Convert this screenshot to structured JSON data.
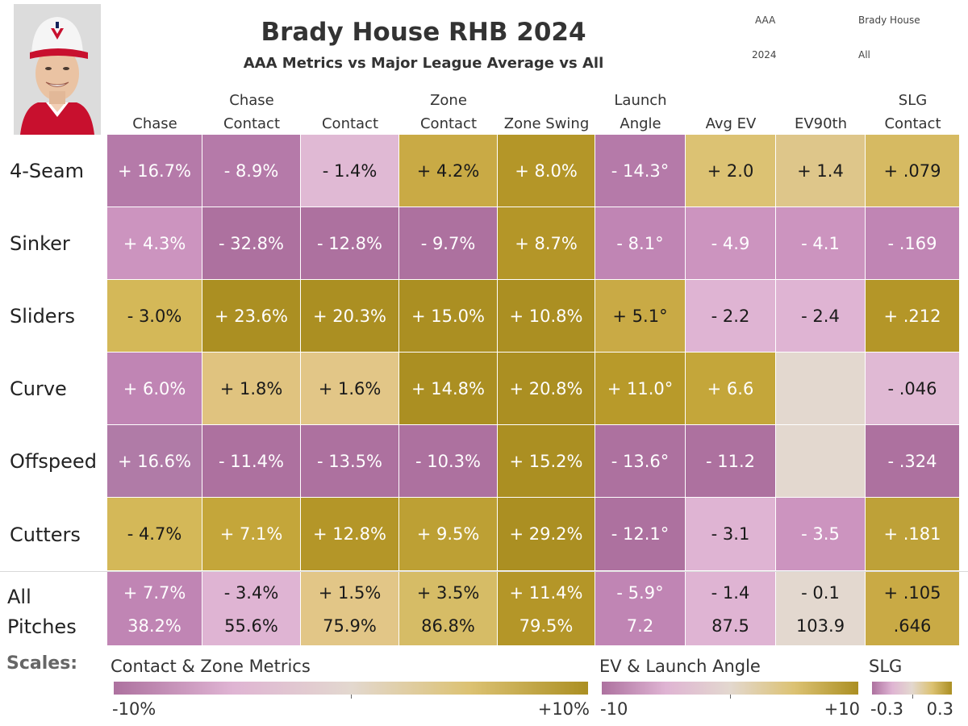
{
  "header": {
    "title": "Brady House RHB 2024",
    "subtitle": "AAA Metrics vs Major League Average vs All",
    "filters": [
      "AAA",
      "Brady House",
      "2024",
      "All"
    ]
  },
  "chart_data": {
    "type": "heatmap",
    "columns": [
      "Chase",
      "Chase Contact",
      "Contact",
      "Zone Contact",
      "Zone Swing",
      "Launch Angle",
      "Avg EV",
      "EV90th",
      "SLG Contact"
    ],
    "column_header_lines": [
      [
        "",
        "Chase"
      ],
      [
        "Chase",
        "Contact"
      ],
      [
        "",
        "Contact"
      ],
      [
        "Zone",
        "Contact"
      ],
      [
        "",
        "Zone Swing"
      ],
      [
        "Launch",
        "Angle"
      ],
      [
        "",
        "Avg EV"
      ],
      [
        "",
        "EV90th"
      ],
      [
        "SLG",
        "Contact"
      ]
    ],
    "rows": [
      {
        "label": "4-Seam",
        "values": [
          "+ 16.7%",
          "- 8.9%",
          "- 1.4%",
          "+ 4.2%",
          "+ 8.0%",
          "- 14.3°",
          "+ 2.0",
          "+ 1.4",
          "+ .079"
        ]
      },
      {
        "label": "Sinker",
        "values": [
          "+ 4.3%",
          "- 32.8%",
          "- 12.8%",
          "- 9.7%",
          "+ 8.7%",
          "- 8.1°",
          "- 4.9",
          "- 4.1",
          "- .169"
        ]
      },
      {
        "label": "Sliders",
        "values": [
          "- 3.0%",
          "+ 23.6%",
          "+ 20.3%",
          "+ 15.0%",
          "+ 10.8%",
          "+ 5.1°",
          "- 2.2",
          "- 2.4",
          "+ .212"
        ]
      },
      {
        "label": "Curve",
        "values": [
          "+ 6.0%",
          "+ 1.8%",
          "+ 1.6%",
          "+ 14.8%",
          "+ 20.8%",
          "+ 11.0°",
          "+ 6.6",
          "",
          "- .046"
        ]
      },
      {
        "label": "Offspeed",
        "values": [
          "+ 16.6%",
          "- 11.4%",
          "- 13.5%",
          "- 10.3%",
          "+ 15.2%",
          "- 13.6°",
          "- 11.2",
          "",
          "- .324"
        ]
      },
      {
        "label": "Cutters",
        "values": [
          "- 4.7%",
          "+ 7.1%",
          "+ 12.8%",
          "+ 9.5%",
          "+ 29.2%",
          "- 12.1°",
          "- 3.1",
          "- 3.5",
          "+ .181"
        ]
      }
    ],
    "all_pitches": {
      "label_lines": [
        "All",
        "Pitches"
      ],
      "diffs": [
        "+ 7.7%",
        "- 3.4%",
        "+ 1.5%",
        "+ 3.5%",
        "+ 11.4%",
        "- 5.9°",
        "- 1.4",
        "- 0.1",
        "+ .105"
      ],
      "values": [
        "38.2%",
        "55.6%",
        "75.9%",
        "86.8%",
        "79.5%",
        "7.2",
        "87.5",
        "103.9",
        ".646"
      ]
    },
    "row_colors": [
      [
        "#b57aa9",
        "#b57aa9",
        "#e0b9d4",
        "#c9aa45",
        "#b49628",
        "#b57aa9",
        "#dcc273",
        "#dec68a",
        "#d6ba62"
      ],
      [
        "#cc94bf",
        "#ad719f",
        "#ad719f",
        "#ad719f",
        "#b49628",
        "#c085b4",
        "#cc94bf",
        "#cc94bf",
        "#c085b4"
      ],
      [
        "#d4b858",
        "#ab8f22",
        "#ab8f22",
        "#ab8f22",
        "#ab8f22",
        "#c9aa45",
        "#dfb4d3",
        "#dfb4d3",
        "#b49628"
      ],
      [
        "#c085b4",
        "#e0c37f",
        "#e2c687",
        "#ab8f22",
        "#ab8f22",
        "#b89a2a",
        "#c4a63a",
        "#e3d8cf",
        "#e0b9d4"
      ],
      [
        "#b07ba7",
        "#ad719f",
        "#ad719f",
        "#ad719f",
        "#ab8f22",
        "#ad719f",
        "#ad719f",
        "#e3d8cf",
        "#ad719f"
      ],
      [
        "#d4b858",
        "#c4a63a",
        "#b49628",
        "#bda034",
        "#ab8f22",
        "#ad719f",
        "#dfb4d3",
        "#cc94bf",
        "#bea138"
      ]
    ],
    "all_colors": [
      "#c085b4",
      "#dfb4d3",
      "#e2c687",
      "#d6bc66",
      "#b49628",
      "#c085b4",
      "#dfb4d3",
      "#e3d8cf",
      "#c9aa45"
    ]
  },
  "scales": {
    "label": "Scales:",
    "items": [
      {
        "title": "Contact & Zone Metrics",
        "min": "-10%",
        "max": "+10%"
      },
      {
        "title": "EV & Launch Angle",
        "min": "-10",
        "max": "+10"
      },
      {
        "title": "SLG",
        "min": "-0.3",
        "max": "0.3"
      }
    ],
    "colors": {
      "neg": "#ad719f",
      "mid_neg": "#dfb4d3",
      "neutral": "#e3d8cf",
      "mid_pos": "#dcc273",
      "pos": "#ab8f22"
    }
  }
}
